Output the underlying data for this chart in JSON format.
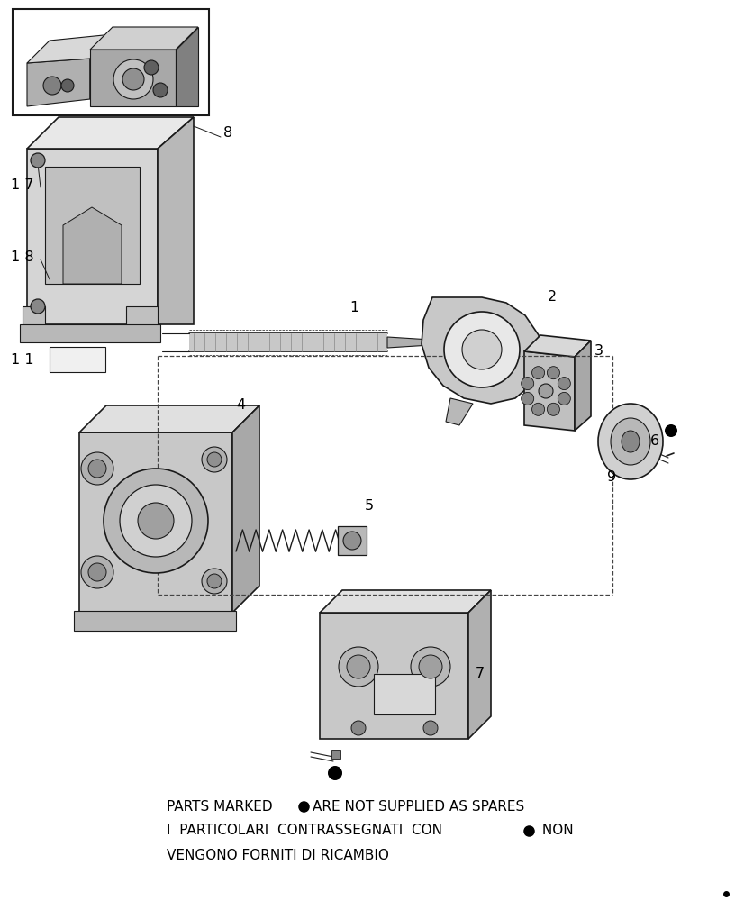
{
  "background_color": "#ffffff",
  "figure_width": 8.16,
  "figure_height": 10.0,
  "dpi": 100,
  "line_color": "#1a1a1a",
  "text_color": "#000000",
  "footer_line1a": "PARTS MARKED ",
  "footer_line1b": "ARE NOT SUPPLIED AS SPARES",
  "footer_line2a": "I  PARTICOLARI  CONTRASSEGNATI  CON ",
  "footer_line2b": " NON",
  "footer_line3": "VENGONO FORNITI DI RICAMBIO"
}
